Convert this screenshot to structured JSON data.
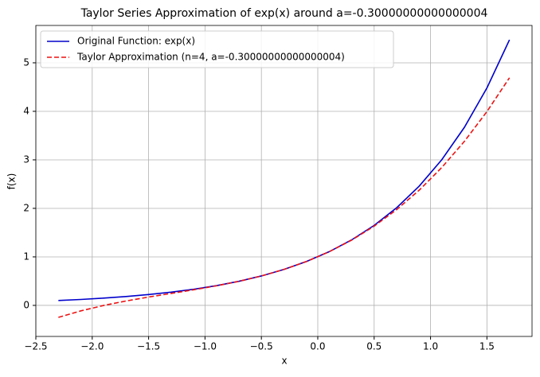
{
  "chart_data": {
    "type": "line",
    "title": "Taylor Series Approximation of exp(x) around a=-0.30000000000000004",
    "xlabel": "x",
    "ylabel": "f(x)",
    "x": [
      -2.3,
      -2.1,
      -1.9,
      -1.7,
      -1.5,
      -1.3,
      -1.1,
      -0.9,
      -0.7,
      -0.5,
      -0.3,
      -0.1,
      0.1,
      0.3,
      0.5,
      0.7,
      0.9,
      1.1,
      1.3,
      1.5,
      1.7
    ],
    "series": [
      {
        "name": "Original Function: exp(x)",
        "color": "#0000cc",
        "dash": "solid",
        "values": [
          0.1003,
          0.1225,
          0.1496,
          0.1827,
          0.2231,
          0.2725,
          0.3329,
          0.4066,
          0.4966,
          0.6065,
          0.7408,
          0.9048,
          1.1052,
          1.3499,
          1.6487,
          2.0138,
          2.4596,
          3.0042,
          3.6693,
          4.4817,
          5.4739
        ]
      },
      {
        "name": "Taylor Approximation (n=4, a=-0.30000000000000004)",
        "color": "#ee1111",
        "dash": "dashed",
        "values": [
          -0.2469,
          -0.1126,
          -0.002,
          0.0909,
          0.1719,
          0.2469,
          0.322,
          0.403,
          0.4958,
          0.6065,
          0.7408,
          0.9048,
          1.1043,
          1.3453,
          1.6337,
          1.9755,
          2.3765,
          2.8428,
          3.3801,
          3.9945,
          4.6918
        ]
      }
    ],
    "xlim": [
      -2.5,
      1.9
    ],
    "ylim": [
      -0.64,
      5.77
    ],
    "xticks": [
      {
        "value": -2.5,
        "label": "−2.5"
      },
      {
        "value": -2.0,
        "label": "−2.0"
      },
      {
        "value": -1.5,
        "label": "−1.5"
      },
      {
        "value": -1.0,
        "label": "−1.0"
      },
      {
        "value": -0.5,
        "label": "−0.5"
      },
      {
        "value": 0,
        "label": "0.0"
      },
      {
        "value": 0.5,
        "label": "0.5"
      },
      {
        "value": 1,
        "label": "1.0"
      },
      {
        "value": 1.5,
        "label": "1.5"
      }
    ],
    "yticks": [
      0,
      1,
      2,
      3,
      4,
      5
    ],
    "grid": true,
    "legend": "upper-left"
  }
}
